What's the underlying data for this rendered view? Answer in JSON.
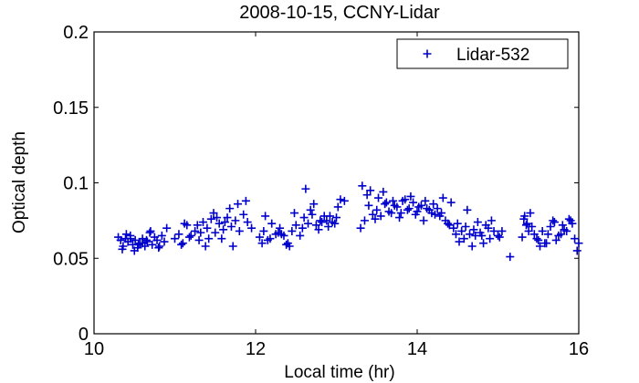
{
  "chart_data": {
    "type": "scatter",
    "title": "2008-10-15, CCNY-Lidar",
    "xlabel": "Local time (hr)",
    "ylabel": "Optical depth",
    "xlim": [
      10,
      16
    ],
    "ylim": [
      0,
      0.2
    ],
    "xticks": [
      10,
      12,
      14,
      16
    ],
    "xtick_labels": [
      "10",
      "12",
      "14",
      "16"
    ],
    "yticks": [
      0,
      0.05,
      0.1,
      0.15,
      0.2
    ],
    "ytick_labels": [
      "0",
      "0.05",
      "0.1",
      "0.15",
      "0.2"
    ],
    "grid": false,
    "legend_position": "top-right",
    "marker": "plus",
    "series": [
      {
        "name": "Lidar-532",
        "color": "#0000cc",
        "x": [
          10.3,
          10.33,
          10.36,
          10.39,
          10.42,
          10.45,
          10.48,
          10.51,
          10.54,
          10.57,
          10.6,
          10.63,
          10.66,
          10.69,
          10.72,
          10.75,
          10.78,
          10.81,
          10.84,
          10.87,
          10.35,
          10.4,
          10.5,
          10.6,
          10.7,
          10.8,
          10.45,
          10.55,
          10.65,
          10.9,
          11.0,
          11.05,
          11.1,
          11.15,
          11.2,
          11.25,
          11.3,
          11.35,
          11.4,
          11.45,
          11.5,
          11.55,
          11.6,
          11.65,
          11.7,
          11.75,
          11.8,
          11.85,
          11.9,
          11.95,
          11.08,
          11.18,
          11.28,
          11.38,
          11.48,
          11.58,
          11.68,
          11.78,
          11.88,
          11.12,
          11.32,
          11.52,
          11.72,
          11.62,
          11.42,
          12.05,
          12.1,
          12.15,
          12.2,
          12.25,
          12.3,
          12.35,
          12.4,
          12.45,
          12.5,
          12.55,
          12.6,
          12.65,
          12.7,
          12.75,
          12.8,
          12.85,
          12.9,
          12.95,
          13.0,
          12.08,
          12.18,
          12.28,
          12.38,
          12.48,
          12.58,
          12.68,
          12.78,
          12.88,
          12.98,
          12.62,
          12.72,
          12.82,
          12.92,
          13.02,
          13.05,
          13.1,
          12.12,
          12.42,
          12.32,
          13.3,
          13.35,
          13.4,
          13.45,
          13.5,
          13.55,
          13.6,
          13.65,
          13.7,
          13.75,
          13.8,
          13.85,
          13.9,
          13.95,
          14.0,
          14.05,
          14.1,
          14.15,
          14.2,
          14.25,
          13.32,
          13.42,
          13.52,
          13.62,
          13.72,
          13.82,
          13.92,
          14.02,
          14.12,
          14.22,
          13.38,
          13.48,
          13.58,
          13.68,
          13.78,
          13.88,
          13.98,
          14.08,
          14.18,
          14.28,
          14.3,
          14.35,
          14.4,
          14.45,
          14.5,
          14.55,
          14.6,
          14.65,
          14.7,
          14.75,
          14.8,
          14.85,
          14.9,
          14.95,
          15.0,
          15.05,
          14.32,
          14.42,
          14.52,
          14.62,
          14.72,
          14.82,
          14.92,
          15.02,
          14.38,
          14.48,
          14.58,
          14.68,
          14.78,
          14.88,
          15.15,
          15.3,
          15.33,
          15.36,
          15.4,
          15.45,
          15.5,
          15.55,
          15.6,
          15.65,
          15.7,
          15.75,
          15.8,
          15.85,
          15.9,
          15.95,
          16.0,
          15.32,
          15.42,
          15.52,
          15.62,
          15.72,
          15.82,
          15.92,
          15.38,
          15.48,
          15.58,
          15.68,
          15.78,
          15.88,
          15.98,
          15.35
        ],
        "y": [
          0.064,
          0.062,
          0.058,
          0.063,
          0.061,
          0.065,
          0.059,
          0.062,
          0.057,
          0.06,
          0.063,
          0.058,
          0.061,
          0.067,
          0.059,
          0.064,
          0.062,
          0.058,
          0.065,
          0.061,
          0.056,
          0.066,
          0.055,
          0.06,
          0.068,
          0.057,
          0.063,
          0.059,
          0.062,
          0.07,
          0.063,
          0.066,
          0.06,
          0.072,
          0.065,
          0.068,
          0.062,
          0.074,
          0.07,
          0.076,
          0.067,
          0.073,
          0.069,
          0.077,
          0.071,
          0.075,
          0.068,
          0.079,
          0.074,
          0.07,
          0.059,
          0.064,
          0.072,
          0.058,
          0.08,
          0.063,
          0.083,
          0.086,
          0.088,
          0.073,
          0.067,
          0.077,
          0.058,
          0.074,
          0.063,
          0.064,
          0.068,
          0.062,
          0.073,
          0.066,
          0.07,
          0.065,
          0.06,
          0.068,
          0.072,
          0.065,
          0.077,
          0.073,
          0.079,
          0.072,
          0.075,
          0.078,
          0.071,
          0.074,
          0.077,
          0.06,
          0.063,
          0.067,
          0.059,
          0.08,
          0.07,
          0.082,
          0.069,
          0.075,
          0.073,
          0.096,
          0.086,
          0.074,
          0.078,
          0.084,
          0.089,
          0.088,
          0.078,
          0.058,
          0.066,
          0.07,
          0.075,
          0.085,
          0.079,
          0.082,
          0.078,
          0.086,
          0.081,
          0.088,
          0.084,
          0.08,
          0.089,
          0.083,
          0.087,
          0.081,
          0.085,
          0.088,
          0.082,
          0.086,
          0.083,
          0.098,
          0.095,
          0.09,
          0.087,
          0.085,
          0.088,
          0.091,
          0.084,
          0.083,
          0.079,
          0.092,
          0.076,
          0.094,
          0.08,
          0.077,
          0.082,
          0.079,
          0.075,
          0.08,
          0.078,
          0.08,
          0.075,
          0.072,
          0.07,
          0.073,
          0.068,
          0.071,
          0.066,
          0.069,
          0.074,
          0.065,
          0.072,
          0.063,
          0.068,
          0.065,
          0.068,
          0.09,
          0.087,
          0.061,
          0.082,
          0.065,
          0.06,
          0.075,
          0.064,
          0.073,
          0.066,
          0.063,
          0.058,
          0.067,
          0.07,
          0.051,
          0.064,
          0.078,
          0.073,
          0.08,
          0.066,
          0.062,
          0.068,
          0.06,
          0.071,
          0.074,
          0.065,
          0.072,
          0.068,
          0.075,
          0.063,
          0.06,
          0.076,
          0.071,
          0.058,
          0.066,
          0.062,
          0.069,
          0.073,
          0.068,
          0.063,
          0.06,
          0.075,
          0.066,
          0.076,
          0.055,
          0.072
        ]
      }
    ]
  }
}
